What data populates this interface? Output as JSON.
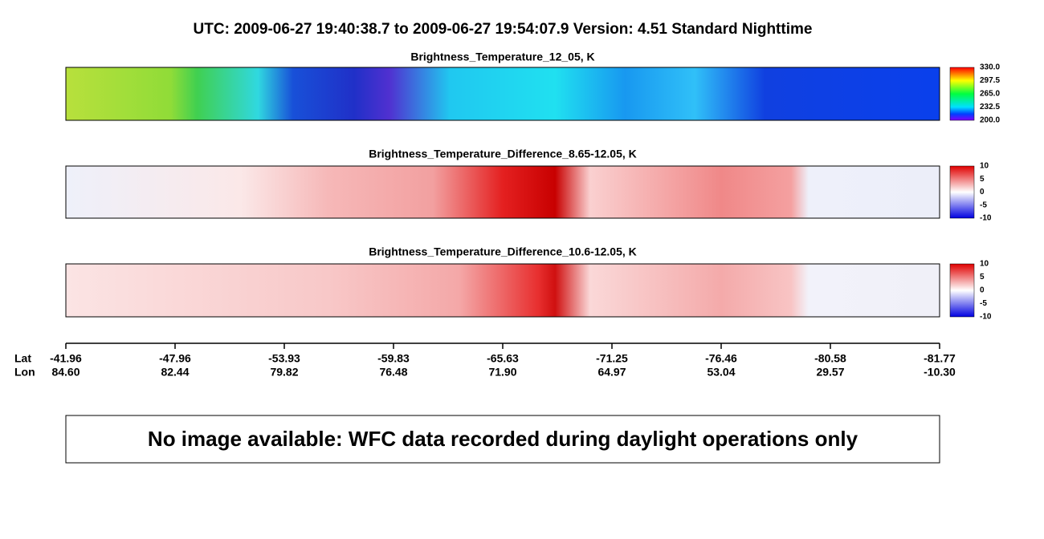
{
  "title": "UTC:  2009-06-27   19:40:38.7  to  2009-06-27   19:54:07.9    Version: 4.51  Standard Nighttime",
  "panels": [
    {
      "title": "Brightness_Temperature_12_05, K",
      "colorbar_ticks": [
        "330.0",
        "297.5",
        "265.0",
        "232.5",
        "200.0"
      ]
    },
    {
      "title": "Brightness_Temperature_Difference_8.65-12.05, K",
      "colorbar_ticks": [
        "10",
        "5",
        "0",
        "-5",
        "-10"
      ]
    },
    {
      "title": "Brightness_Temperature_Difference_10.6-12.05, K",
      "colorbar_ticks": [
        "10",
        "5",
        "0",
        "-5",
        "-10"
      ]
    }
  ],
  "axis": {
    "lat_label": "Lat",
    "lon_label": "Lon",
    "lat": [
      "-41.96",
      "-47.96",
      "-53.93",
      "-59.83",
      "-65.63",
      "-71.25",
      "-76.46",
      "-80.58",
      "-81.77"
    ],
    "lon": [
      "84.60",
      "82.44",
      "79.82",
      "76.48",
      "71.90",
      "64.97",
      "53.04",
      "29.57",
      "-10.30"
    ]
  },
  "notice": "No image available: WFC data recorded during daylight operations only"
}
